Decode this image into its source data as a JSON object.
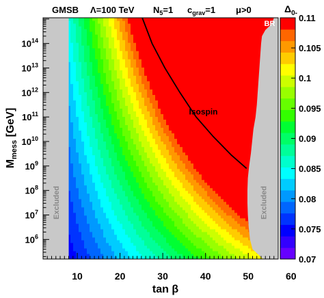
{
  "chart_data": {
    "type": "heatmap",
    "header": {
      "model": "GMSB",
      "lambda": "Λ=100 TeV",
      "n5_main": "N",
      "n5_sub": "5",
      "n5_val": "=1",
      "cgrav_main": "c",
      "cgrav_sub": "grav",
      "cgrav_val": "=1",
      "mu": "μ>0"
    },
    "xlabel": "tan β",
    "ylabel_main": "M",
    "ylabel_sub": "mess",
    "ylabel_unit": " [GeV]",
    "x_ticks": [
      10,
      20,
      30,
      40,
      50,
      60
    ],
    "xlim": [
      2,
      57
    ],
    "ylim_log10": [
      5.2,
      15.05
    ],
    "y_ticks": [
      {
        "exp": 6,
        "base": "10",
        "sup": "6"
      },
      {
        "exp": 7,
        "base": "10",
        "sup": "7"
      },
      {
        "exp": 8,
        "base": "10",
        "sup": "8"
      },
      {
        "exp": 9,
        "base": "10",
        "sup": "9"
      },
      {
        "exp": 10,
        "base": "10",
        "sup": "10"
      },
      {
        "exp": 11,
        "base": "10",
        "sup": "11"
      },
      {
        "exp": 12,
        "base": "10",
        "sup": "12"
      },
      {
        "exp": 13,
        "base": "10",
        "sup": "13"
      },
      {
        "exp": 14,
        "base": "10",
        "sup": "14"
      }
    ],
    "colorbar": {
      "title_main": "Δ",
      "title_sub": "0-",
      "range": [
        0.07,
        0.11
      ],
      "tick_labels": [
        "0.07",
        "0.075",
        "0.08",
        "0.085",
        "0.09",
        "0.095",
        "0.1",
        "0.105",
        "0.11"
      ],
      "tick_values": [
        0.07,
        0.075,
        0.08,
        0.085,
        0.09,
        0.095,
        0.1,
        0.105,
        0.11
      ],
      "levels": 20,
      "colors": [
        "#6600ff",
        "#3300ff",
        "#0000ff",
        "#0033ff",
        "#0066ff",
        "#0099ff",
        "#00ccff",
        "#00ffff",
        "#00ffcc",
        "#00ff99",
        "#00ff66",
        "#00ff33",
        "#33ff00",
        "#66ff00",
        "#99ff00",
        "#ccff00",
        "#ffff00",
        "#ffcc00",
        "#ff9900",
        "#ff6600",
        "#ff0000"
      ]
    },
    "formula": {
      "base": 0.0735,
      "tb_coef": 0.00072,
      "tb_ref": 5,
      "m_coef": 0.0008,
      "m_ref": 6,
      "mix_coef": 0.000113
    },
    "excluded_left": {
      "x_max": 8.0
    },
    "excluded_right": {
      "boundary": [
        [
          15.05,
          56
        ],
        [
          14.8,
          55.5
        ],
        [
          14.55,
          54
        ],
        [
          14.3,
          53.2
        ],
        [
          14.0,
          53.0
        ],
        [
          13.5,
          52.8
        ],
        [
          13.0,
          52.6
        ],
        [
          12.5,
          52.4
        ],
        [
          12.0,
          52.2
        ],
        [
          11.5,
          52.0
        ],
        [
          11.0,
          51.7
        ],
        [
          10.5,
          51.2
        ],
        [
          10.0,
          50.9
        ],
        [
          9.5,
          50.6
        ],
        [
          9.0,
          50.2
        ],
        [
          8.5,
          49.9
        ],
        [
          8.0,
          49.8
        ],
        [
          7.5,
          49.8
        ],
        [
          7.0,
          49.9
        ],
        [
          6.5,
          50.1
        ],
        [
          6.0,
          50.4
        ],
        [
          5.6,
          51.0
        ],
        [
          5.2,
          53.5
        ]
      ]
    },
    "exclusion_color": "#c8c8c8",
    "isospin_curve": [
      [
        25.2,
        15.05
      ],
      [
        27.5,
        14.0
      ],
      [
        30.5,
        13.0
      ],
      [
        34.0,
        12.0
      ],
      [
        37.8,
        11.0
      ],
      [
        41.8,
        10.2
      ],
      [
        46.0,
        9.45
      ],
      [
        49.6,
        8.9
      ]
    ],
    "annotations": {
      "isospin": "Isospin",
      "isospin_at": [
        39.5,
        11.1
      ],
      "excluded_left": "Excluded",
      "excluded_left_at": [
        5.0,
        7.5
      ],
      "excluded_right": "Excluded",
      "excluded_right_at": [
        53.6,
        7.5
      ],
      "br": "BR",
      "br_at": [
        55.0,
        14.82
      ]
    }
  }
}
